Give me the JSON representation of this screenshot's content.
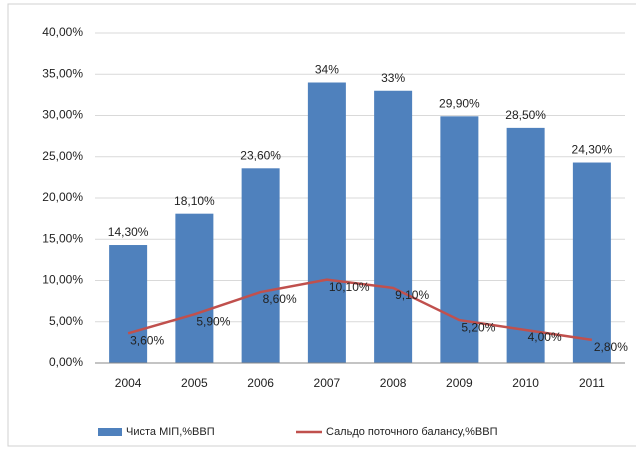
{
  "chart_data": {
    "type": "combo",
    "categories": [
      "2004",
      "2005",
      "2006",
      "2007",
      "2008",
      "2009",
      "2010",
      "2011"
    ],
    "series": [
      {
        "name": "Чиста МІП,%ВВП",
        "type": "bar",
        "color": "#4f81bd",
        "values": [
          14.3,
          18.1,
          23.6,
          34,
          33,
          29.9,
          28.5,
          24.3
        ],
        "value_labels": [
          "14,30%",
          "18,10%",
          "23,60%",
          "34%",
          "33%",
          "29,90%",
          "28,50%",
          "24,30%"
        ]
      },
      {
        "name": "Сальдо поточного балансу,%ВВП",
        "type": "line",
        "color": "#c0504d",
        "values": [
          3.6,
          5.9,
          8.6,
          10.1,
          9.1,
          5.2,
          4.0,
          2.8
        ],
        "value_labels": [
          "3,60%",
          "5,90%",
          "8,60%",
          "10,10%",
          "9,10%",
          "5,20%",
          "4,00%",
          "2,80%"
        ]
      }
    ],
    "ylim": [
      0,
      40
    ],
    "yticks": [
      {
        "value": 0,
        "label": "0,00%"
      },
      {
        "value": 5,
        "label": "5,00%"
      },
      {
        "value": 10,
        "label": "10,00%"
      },
      {
        "value": 15,
        "label": "15,00%"
      },
      {
        "value": 20,
        "label": "20,00%"
      },
      {
        "value": 25,
        "label": "25,00%"
      },
      {
        "value": 30,
        "label": "30,00%"
      },
      {
        "value": 35,
        "label": "35,00%"
      },
      {
        "value": 40,
        "label": "40,00%"
      }
    ],
    "grid": true,
    "legend": "bottom"
  }
}
